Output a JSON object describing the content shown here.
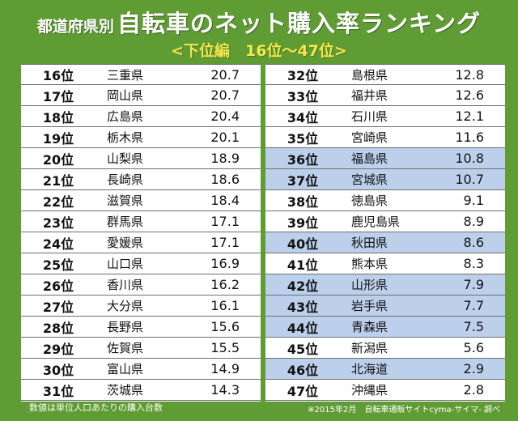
{
  "title_prefix": "都道府県別",
  "title_main": "自転車のネット購入率ランキング",
  "subtitle": "<下位編　16位～47位>",
  "footer_left": "数値は単位人口あたりの購入台数",
  "footer_right": "※2015年2月　自転車通販サイトcyma-サイマ- 調べ",
  "colors": {
    "background": "#5f9c34",
    "subtitle": "#f4e84a",
    "highlight_row": "#bcd0ec",
    "table_bg": "#ffffff"
  },
  "chart_data": {
    "type": "table",
    "columns": [
      "rank",
      "prefecture",
      "value"
    ],
    "left_table": [
      {
        "rank": "16位",
        "name": "三重県",
        "value": "20.7",
        "highlight": false
      },
      {
        "rank": "17位",
        "name": "岡山県",
        "value": "20.7",
        "highlight": false
      },
      {
        "rank": "18位",
        "name": "広島県",
        "value": "20.4",
        "highlight": false
      },
      {
        "rank": "19位",
        "name": "栃木県",
        "value": "20.1",
        "highlight": false
      },
      {
        "rank": "20位",
        "name": "山梨県",
        "value": "18.9",
        "highlight": false
      },
      {
        "rank": "21位",
        "name": "長崎県",
        "value": "18.6",
        "highlight": false
      },
      {
        "rank": "22位",
        "name": "滋賀県",
        "value": "18.4",
        "highlight": false
      },
      {
        "rank": "23位",
        "name": "群馬県",
        "value": "17.1",
        "highlight": false
      },
      {
        "rank": "24位",
        "name": "愛媛県",
        "value": "17.1",
        "highlight": false
      },
      {
        "rank": "25位",
        "name": "山口県",
        "value": "16.9",
        "highlight": false
      },
      {
        "rank": "26位",
        "name": "香川県",
        "value": "16.2",
        "highlight": false
      },
      {
        "rank": "27位",
        "name": "大分県",
        "value": "16.1",
        "highlight": false
      },
      {
        "rank": "28位",
        "name": "長野県",
        "value": "15.6",
        "highlight": false
      },
      {
        "rank": "29位",
        "name": "佐賀県",
        "value": "15.5",
        "highlight": false
      },
      {
        "rank": "30位",
        "name": "富山県",
        "value": "14.9",
        "highlight": false
      },
      {
        "rank": "31位",
        "name": "茨城県",
        "value": "14.3",
        "highlight": false
      }
    ],
    "right_table": [
      {
        "rank": "32位",
        "name": "島根県",
        "value": "12.8",
        "highlight": false
      },
      {
        "rank": "33位",
        "name": "福井県",
        "value": "12.6",
        "highlight": false
      },
      {
        "rank": "34位",
        "name": "石川県",
        "value": "12.1",
        "highlight": false
      },
      {
        "rank": "35位",
        "name": "宮崎県",
        "value": "11.6",
        "highlight": false
      },
      {
        "rank": "36位",
        "name": "福島県",
        "value": "10.8",
        "highlight": true
      },
      {
        "rank": "37位",
        "name": "宮城県",
        "value": "10.7",
        "highlight": true
      },
      {
        "rank": "38位",
        "name": "徳島県",
        "value": "9.1",
        "highlight": false
      },
      {
        "rank": "39位",
        "name": "鹿児島県",
        "value": "8.9",
        "highlight": false
      },
      {
        "rank": "40位",
        "name": "秋田県",
        "value": "8.6",
        "highlight": true
      },
      {
        "rank": "41位",
        "name": "熊本県",
        "value": "8.3",
        "highlight": false
      },
      {
        "rank": "42位",
        "name": "山形県",
        "value": "7.9",
        "highlight": true
      },
      {
        "rank": "43位",
        "name": "岩手県",
        "value": "7.7",
        "highlight": true
      },
      {
        "rank": "44位",
        "name": "青森県",
        "value": "7.5",
        "highlight": true
      },
      {
        "rank": "45位",
        "name": "新潟県",
        "value": "5.6",
        "highlight": false
      },
      {
        "rank": "46位",
        "name": "北海道",
        "value": "2.9",
        "highlight": true
      },
      {
        "rank": "47位",
        "name": "沖縄県",
        "value": "2.8",
        "highlight": false
      }
    ]
  }
}
